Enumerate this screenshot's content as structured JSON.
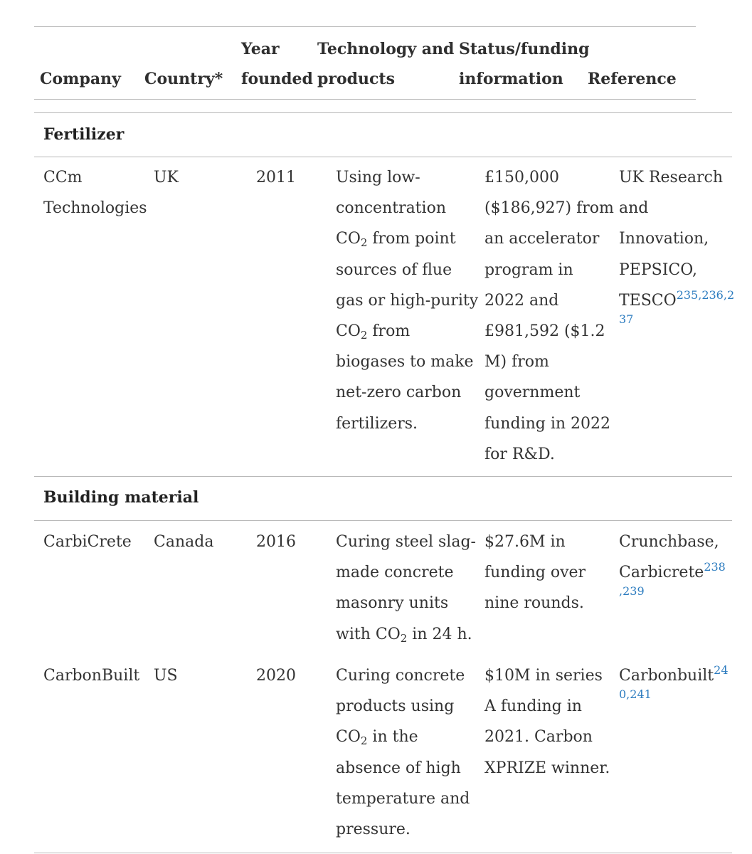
{
  "header": {
    "cols": [
      {
        "top": "",
        "bottom": "Company"
      },
      {
        "top": "",
        "bottom": "Country*"
      },
      {
        "top": "Year",
        "bottom": "founded"
      },
      {
        "top": "Technology and",
        "bottom": "products"
      },
      {
        "top": "Status/funding",
        "bottom": "information"
      },
      {
        "top": "",
        "bottom": "Reference"
      }
    ]
  },
  "sections": [
    {
      "title": "Fertilizer",
      "rows": [
        {
          "company": [
            "CCm",
            "Technologies"
          ],
          "country": "UK",
          "year": "2011",
          "tech": [
            "Using low-",
            "concentration",
            "CO2 from point",
            "sources of flue",
            "gas or high-purity",
            "CO2 from",
            "biogases to make",
            "net-zero carbon",
            "fertilizers."
          ],
          "status": [
            "£150,000",
            "($186,927) from",
            "an accelerator",
            "program in",
            "2022 and",
            "£981,592 ($1.2",
            "M) from",
            "government",
            "funding in 2022",
            "for R&D."
          ],
          "reference": [
            "UK Research",
            "and",
            "Innovation,",
            "PEPSICO,",
            "TESCO"
          ],
          "ref_links": [
            "235,236,2",
            "37"
          ]
        }
      ]
    },
    {
      "title": "Building material",
      "rows": [
        {
          "company": [
            "CarbiCrete"
          ],
          "country": "Canada",
          "year": "2016",
          "tech": [
            "Curing steel slag-",
            "made concrete",
            "masonry units",
            "with CO2 in 24 h."
          ],
          "status": [
            "$27.6M in",
            "funding over",
            "nine rounds."
          ],
          "reference": [
            "Crunchbase,",
            "Carbicrete"
          ],
          "ref_links": [
            "238",
            ",239"
          ]
        },
        {
          "company": [
            "CarbonBuilt"
          ],
          "country": "US",
          "year": "2020",
          "tech": [
            "Curing concrete",
            "products using",
            "CO2 in the",
            "absence of high",
            "temperature and",
            "pressure."
          ],
          "status": [
            "$10M in series",
            "A funding in",
            "2021. Carbon",
            "XPRIZE winner."
          ],
          "reference": [
            "Carbonbuilt"
          ],
          "ref_links": [
            "24",
            "0,241"
          ]
        }
      ]
    }
  ]
}
